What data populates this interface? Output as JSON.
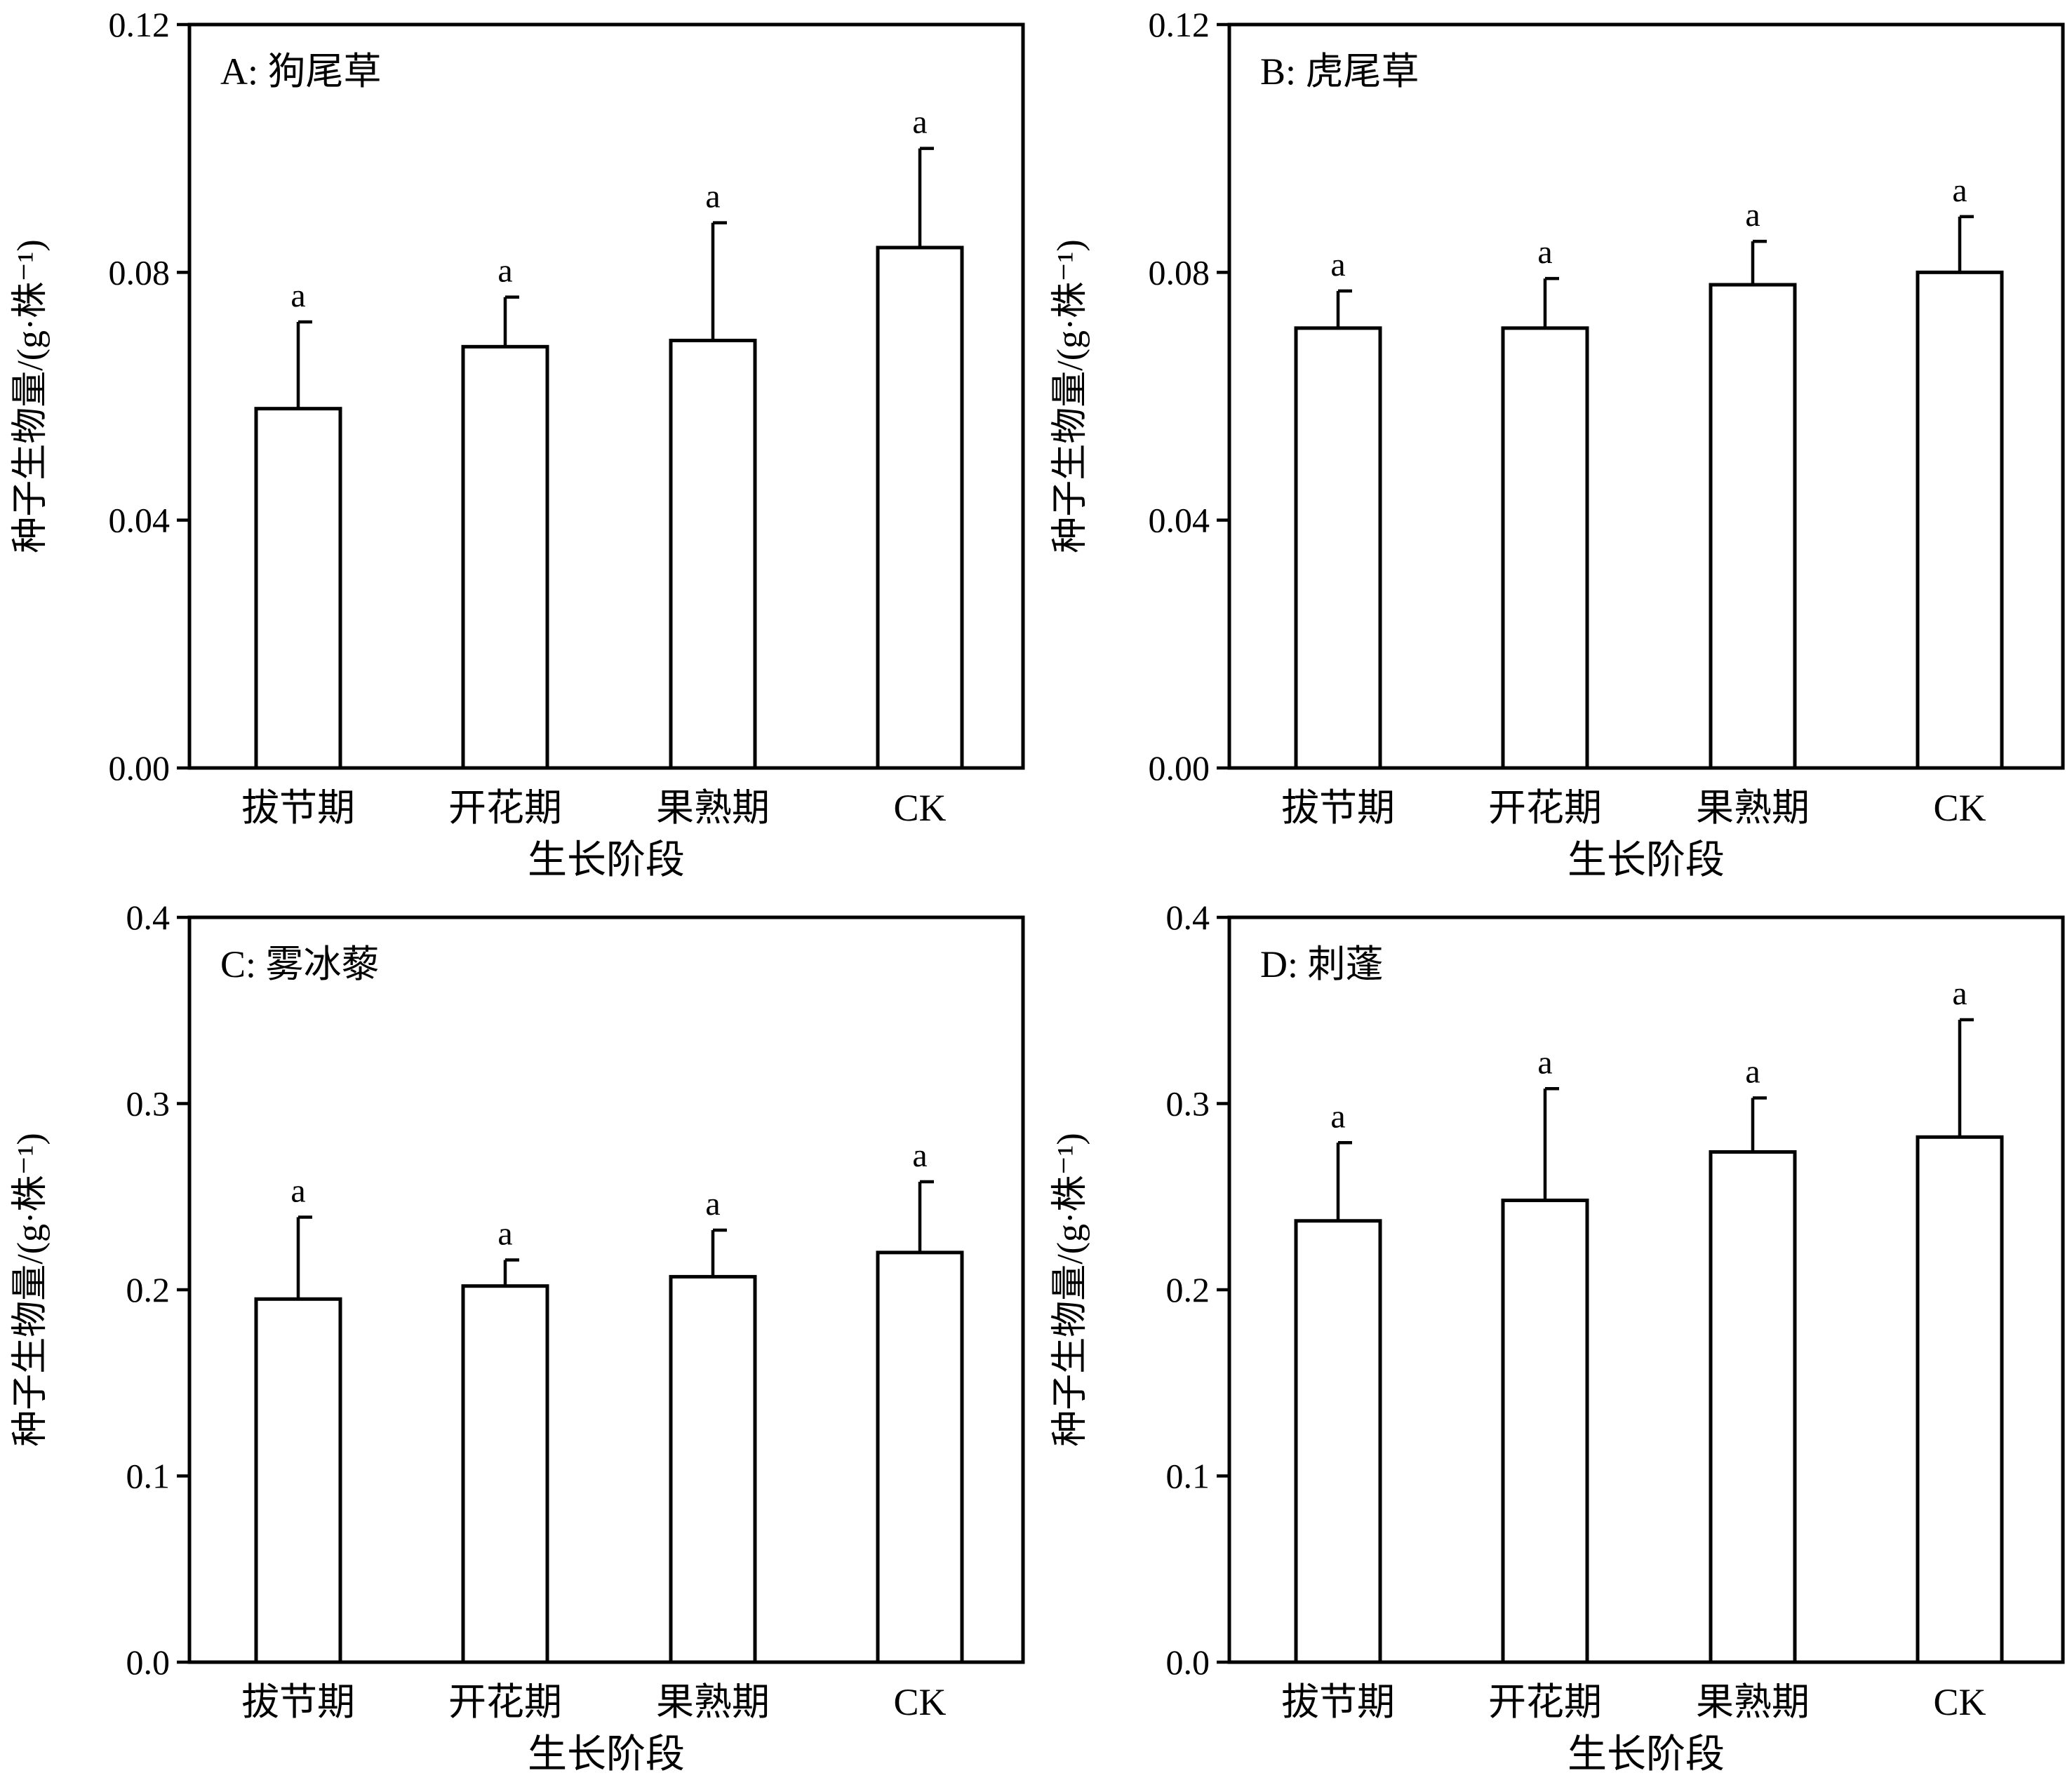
{
  "chart_data": [
    {
      "type": "bar",
      "title": "A: 狗尾草",
      "xlabel": "生长阶段",
      "ylabel": "种子生物量/(g·株⁻¹)",
      "categories": [
        "拔节期",
        "开花期",
        "果熟期",
        "CK"
      ],
      "values": [
        0.058,
        0.068,
        0.069,
        0.084
      ],
      "error": [
        0.014,
        0.008,
        0.019,
        0.016
      ],
      "letters": [
        "a",
        "a",
        "a",
        "a"
      ],
      "ylim": [
        0,
        0.12
      ],
      "yticks": [
        "0.00",
        "0.04",
        "0.08",
        "0.12"
      ]
    },
    {
      "type": "bar",
      "title": "B: 虎尾草",
      "xlabel": "生长阶段",
      "ylabel": "种子生物量/(g·株⁻¹)",
      "categories": [
        "拔节期",
        "开花期",
        "果熟期",
        "CK"
      ],
      "values": [
        0.071,
        0.071,
        0.078,
        0.08
      ],
      "error": [
        0.006,
        0.008,
        0.007,
        0.009
      ],
      "letters": [
        "a",
        "a",
        "a",
        "a"
      ],
      "ylim": [
        0,
        0.12
      ],
      "yticks": [
        "0.00",
        "0.04",
        "0.08",
        "0.12"
      ]
    },
    {
      "type": "bar",
      "title": "C: 雾冰藜",
      "xlabel": "生长阶段",
      "ylabel": "种子生物量/(g·株⁻¹)",
      "categories": [
        "拔节期",
        "开花期",
        "果熟期",
        "CK"
      ],
      "values": [
        0.195,
        0.202,
        0.207,
        0.22
      ],
      "error": [
        0.044,
        0.014,
        0.025,
        0.038
      ],
      "letters": [
        "a",
        "a",
        "a",
        "a"
      ],
      "ylim": [
        0,
        0.4
      ],
      "yticks": [
        "0.0",
        "0.1",
        "0.2",
        "0.3",
        "0.4"
      ]
    },
    {
      "type": "bar",
      "title": "D: 刺蓬",
      "xlabel": "生长阶段",
      "ylabel": "种子生物量/(g·株⁻¹)",
      "categories": [
        "拔节期",
        "开花期",
        "果熟期",
        "CK"
      ],
      "values": [
        0.237,
        0.248,
        0.274,
        0.282
      ],
      "error": [
        0.042,
        0.06,
        0.029,
        0.063
      ],
      "letters": [
        "a",
        "a",
        "a",
        "a"
      ],
      "ylim": [
        0,
        0.4
      ],
      "yticks": [
        "0.0",
        "0.1",
        "0.2",
        "0.3",
        "0.4"
      ]
    }
  ]
}
